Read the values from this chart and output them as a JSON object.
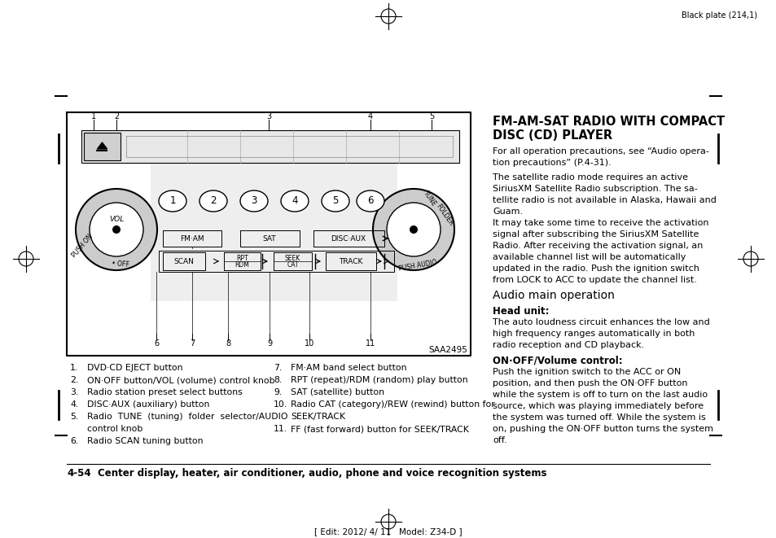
{
  "bg_color": "#ffffff",
  "page_width": 9.54,
  "page_height": 6.61,
  "top_right_text": "Black plate (214,1)",
  "bottom_center_text": "[ Edit: 2012/ 4/ 11   Model: Z34-D ]",
  "section_title_line1": "FM-AM-SAT RADIO WITH COMPACT",
  "section_title_line2": "DISC (CD) PLAYER",
  "para1": "For all operation precautions, see “Audio opera-\ntion precautions” (P.4-31).",
  "para2": "The satellite radio mode requires an active\nSiriusXM Satellite Radio subscription. The sa-\ntellite radio is not available in Alaska, Hawaii and\nGuam.",
  "para3": "It may take some time to receive the activation\nsignal after subscribing the SiriusXM Satellite\nRadio. After receiving the activation signal, an\navailable channel list will be automatically\nupdated in the radio. Push the ignition switch\nfrom LOCK to ACC to update the channel list.",
  "sub_title": "Audio main operation",
  "head_unit_bold": "Head unit:",
  "head_unit_text": "The auto loudness circuit enhances the low and\nhigh frequency ranges automatically in both\nradio reception and CD playback.",
  "onoff_bold": "ON·OFF/Volume control:",
  "onoff_text": "Push the ignition switch to the ACC or ON\nposition, and then push the ON·OFF button\nwhile the system is off to turn on the last audio\nsource, which was playing immediately before\nthe system was turned off. While the system is\non, pushing the ON·OFF button turns the system\noff.",
  "list_left": [
    [
      "1.",
      "DVD·CD EJECT button"
    ],
    [
      "2.",
      "ON·OFF button/VOL (volume) control knob"
    ],
    [
      "3.",
      "Radio station preset select buttons"
    ],
    [
      "4.",
      "DISC·AUX (auxiliary) button"
    ],
    [
      "5.",
      "Radio  TUNE  (tuning)  folder  selector/AUDIO"
    ],
    [
      "",
      "control knob"
    ],
    [
      "6.",
      "Radio SCAN tuning button"
    ]
  ],
  "list_right": [
    [
      "7.",
      "FM·AM band select button"
    ],
    [
      "8.",
      "RPT (repeat)/RDM (random) play button"
    ],
    [
      "9.",
      "SAT (satellite) button"
    ],
    [
      "10.",
      "Radio CAT (category)/REW (rewind) button for"
    ],
    [
      "",
      "SEEK/TRACK"
    ],
    [
      "11.",
      "FF (fast forward) button for SEEK/TRACK"
    ]
  ],
  "saa_text": "SAA2495",
  "footer_num": "4-54",
  "footer_text": "Center display, heater, air conditioner, audio, phone and voice recognition systems"
}
